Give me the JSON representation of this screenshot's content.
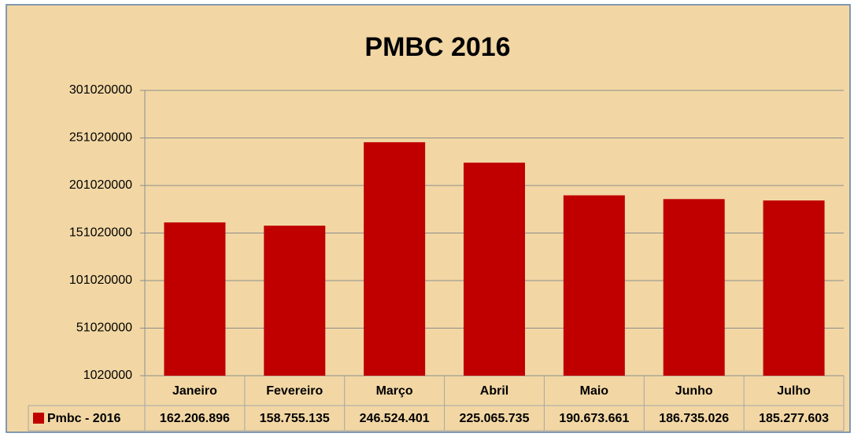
{
  "chart_data": {
    "type": "bar",
    "title": "PMBC 2016",
    "categories": [
      "Janeiro",
      "Fevereiro",
      "Março",
      "Abril",
      "Maio",
      "Junho",
      "Julho"
    ],
    "series": [
      {
        "name": "Pmbc - 2016",
        "color": "#c00000",
        "values": [
          162206896,
          158755135,
          246524401,
          225065735,
          190673661,
          186735026,
          185277603
        ],
        "value_labels": [
          "162.206.896",
          "158.755.135",
          "246.524.401",
          "225.065.735",
          "190.673.661",
          "186.735.026",
          "185.277.603"
        ]
      }
    ],
    "ylim": [
      1020000,
      301020000
    ],
    "yticks": [
      1020000,
      51020000,
      101020000,
      151020000,
      201020000,
      251020000,
      301020000
    ],
    "grid": true
  }
}
